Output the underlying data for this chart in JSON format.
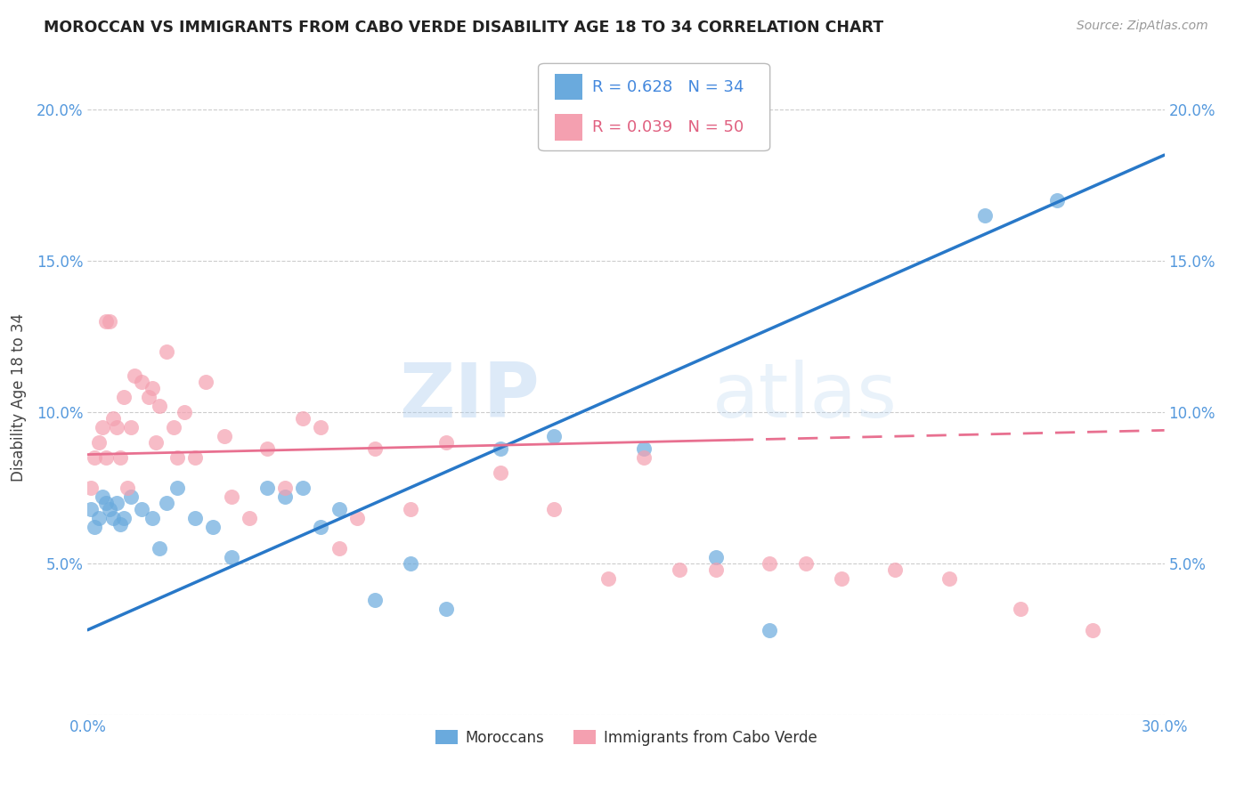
{
  "title": "MOROCCAN VS IMMIGRANTS FROM CABO VERDE DISABILITY AGE 18 TO 34 CORRELATION CHART",
  "source": "Source: ZipAtlas.com",
  "ylabel": "Disability Age 18 to 34",
  "xmin": 0.0,
  "xmax": 0.3,
  "ymin": 0.0,
  "ymax": 0.21,
  "yticks": [
    0.0,
    0.05,
    0.1,
    0.15,
    0.2
  ],
  "ytick_labels": [
    "",
    "5.0%",
    "10.0%",
    "15.0%",
    "20.0%"
  ],
  "xticks": [
    0.0,
    0.05,
    0.1,
    0.15,
    0.2,
    0.25,
    0.3
  ],
  "xtick_labels": [
    "0.0%",
    "",
    "",
    "",
    "",
    "",
    "30.0%"
  ],
  "blue_label": "Moroccans",
  "pink_label": "Immigrants from Cabo Verde",
  "blue_R": "0.628",
  "blue_N": "34",
  "pink_R": "0.039",
  "pink_N": "50",
  "blue_color": "#6aaadd",
  "pink_color": "#f4a0b0",
  "blue_line_color": "#2878c8",
  "pink_line_color": "#e87090",
  "watermark_zip": "ZIP",
  "watermark_atlas": "atlas",
  "blue_line_x0": 0.0,
  "blue_line_y0": 0.028,
  "blue_line_x1": 0.3,
  "blue_line_y1": 0.185,
  "pink_line_x0": 0.0,
  "pink_line_y0": 0.086,
  "pink_line_x1": 0.3,
  "pink_line_y1": 0.094,
  "blue_x": [
    0.001,
    0.002,
    0.003,
    0.004,
    0.005,
    0.006,
    0.007,
    0.008,
    0.009,
    0.01,
    0.012,
    0.015,
    0.018,
    0.02,
    0.022,
    0.025,
    0.03,
    0.035,
    0.04,
    0.05,
    0.055,
    0.06,
    0.065,
    0.07,
    0.08,
    0.09,
    0.1,
    0.115,
    0.13,
    0.155,
    0.175,
    0.19,
    0.25,
    0.27
  ],
  "blue_y": [
    0.068,
    0.062,
    0.065,
    0.072,
    0.07,
    0.068,
    0.065,
    0.07,
    0.063,
    0.065,
    0.072,
    0.068,
    0.065,
    0.055,
    0.07,
    0.075,
    0.065,
    0.062,
    0.052,
    0.075,
    0.072,
    0.075,
    0.062,
    0.068,
    0.038,
    0.05,
    0.035,
    0.088,
    0.092,
    0.088,
    0.052,
    0.028,
    0.165,
    0.17
  ],
  "pink_x": [
    0.001,
    0.002,
    0.003,
    0.004,
    0.005,
    0.005,
    0.006,
    0.007,
    0.008,
    0.009,
    0.01,
    0.011,
    0.012,
    0.013,
    0.015,
    0.017,
    0.018,
    0.019,
    0.02,
    0.022,
    0.024,
    0.025,
    0.027,
    0.03,
    0.033,
    0.038,
    0.04,
    0.045,
    0.05,
    0.055,
    0.06,
    0.065,
    0.07,
    0.075,
    0.08,
    0.09,
    0.1,
    0.115,
    0.13,
    0.145,
    0.155,
    0.165,
    0.175,
    0.19,
    0.2,
    0.21,
    0.225,
    0.24,
    0.26,
    0.28
  ],
  "pink_y": [
    0.075,
    0.085,
    0.09,
    0.095,
    0.13,
    0.085,
    0.13,
    0.098,
    0.095,
    0.085,
    0.105,
    0.075,
    0.095,
    0.112,
    0.11,
    0.105,
    0.108,
    0.09,
    0.102,
    0.12,
    0.095,
    0.085,
    0.1,
    0.085,
    0.11,
    0.092,
    0.072,
    0.065,
    0.088,
    0.075,
    0.098,
    0.095,
    0.055,
    0.065,
    0.088,
    0.068,
    0.09,
    0.08,
    0.068,
    0.045,
    0.085,
    0.048,
    0.048,
    0.05,
    0.05,
    0.045,
    0.048,
    0.045,
    0.035,
    0.028
  ]
}
